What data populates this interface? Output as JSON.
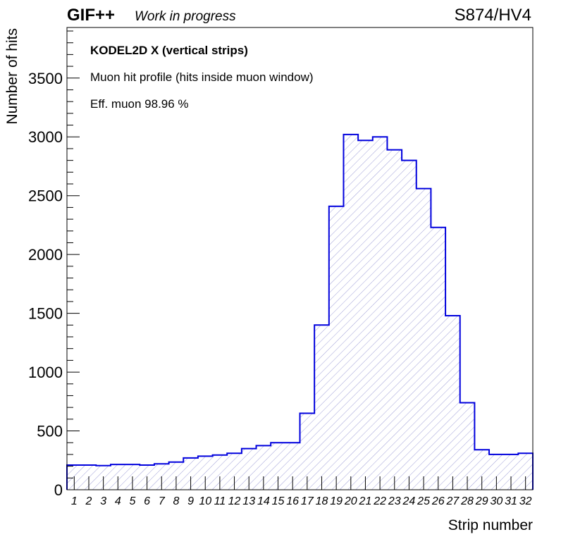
{
  "header": {
    "experiment": "GIF++",
    "status": "Work in progress",
    "run": "S874/HV4"
  },
  "annotations": {
    "detector": "KODEL2D X (vertical strips)",
    "description": "Muon hit profile (hits inside muon window)",
    "efficiency": "Eff. muon 98.96 %"
  },
  "colors": {
    "line": "#0000dd",
    "hatch": "#a0a0d8"
  },
  "chart_data": {
    "type": "bar",
    "style": "histogram-step-hatched",
    "xlabel": "Strip number",
    "ylabel": "Number of hits",
    "categories": [
      "1",
      "2",
      "3",
      "4",
      "5",
      "6",
      "7",
      "8",
      "9",
      "10",
      "11",
      "12",
      "13",
      "14",
      "15",
      "16",
      "17",
      "18",
      "19",
      "20",
      "21",
      "22",
      "23",
      "24",
      "25",
      "26",
      "27",
      "28",
      "29",
      "30",
      "31",
      "32"
    ],
    "values": [
      210,
      210,
      205,
      215,
      215,
      210,
      220,
      235,
      270,
      285,
      295,
      310,
      350,
      375,
      400,
      400,
      650,
      1400,
      2410,
      3020,
      2970,
      3000,
      2890,
      2800,
      2560,
      2230,
      1480,
      740,
      340,
      300,
      300,
      310
    ],
    "xlim": [
      0.5,
      32.5
    ],
    "ylim": [
      0,
      3930
    ],
    "yticks": [
      0,
      500,
      1000,
      1500,
      2000,
      2500,
      3000,
      3500
    ],
    "ytick_labels": [
      "0",
      "500",
      "1000",
      "1500",
      "2000",
      "2500",
      "3000",
      "3500"
    ],
    "grid": false,
    "legend": "none"
  }
}
